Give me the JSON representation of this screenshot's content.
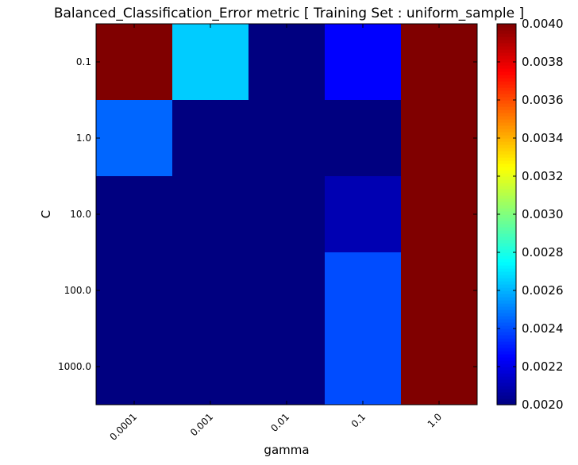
{
  "chart_data": {
    "type": "heatmap",
    "title": "Balanced_Classification_Error metric  [ Training Set : uniform_sample ]",
    "xlabel": "gamma",
    "ylabel": "C",
    "x_categories": [
      "0.0001",
      "0.001",
      "0.01",
      "0.1",
      "1.0"
    ],
    "y_categories": [
      "0.1",
      "1.0",
      "10.0",
      "100.0",
      "1000.0"
    ],
    "values": [
      [
        0.004,
        0.00265,
        0.002,
        0.00225,
        0.004
      ],
      [
        0.00245,
        0.002,
        0.002,
        0.002,
        0.004
      ],
      [
        0.002,
        0.002,
        0.002,
        0.0021,
        0.004
      ],
      [
        0.002,
        0.002,
        0.002,
        0.0024,
        0.004
      ],
      [
        0.002,
        0.002,
        0.002,
        0.0024,
        0.004
      ]
    ],
    "colormap": "jet",
    "vmin": 0.002,
    "vmax": 0.004,
    "colorbar_ticks": [
      "0.0020",
      "0.0022",
      "0.0024",
      "0.0026",
      "0.0028",
      "0.0030",
      "0.0032",
      "0.0034",
      "0.0036",
      "0.0038",
      "0.0040"
    ],
    "grid": false
  }
}
